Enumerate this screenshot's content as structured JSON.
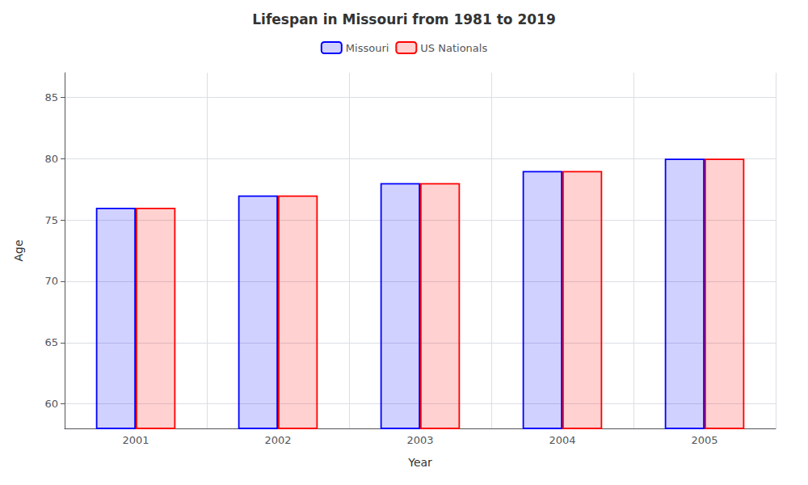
{
  "chart_data": {
    "type": "bar",
    "title": "Lifespan in Missouri from 1981 to 2019",
    "xlabel": "Year",
    "ylabel": "Age",
    "categories": [
      "2001",
      "2002",
      "2003",
      "2004",
      "2005"
    ],
    "series": [
      {
        "name": "Missouri",
        "color": "#0000ff",
        "values": [
          76.0,
          77.0,
          78.0,
          79.0,
          80.0
        ]
      },
      {
        "name": "US Nationals",
        "color": "#ff0000",
        "values": [
          76.0,
          77.0,
          78.0,
          79.0,
          80.0
        ]
      }
    ],
    "ylim": [
      58,
      87
    ],
    "yticks": [
      60,
      65,
      70,
      75,
      80,
      85
    ],
    "grid": true,
    "legend": "top"
  }
}
